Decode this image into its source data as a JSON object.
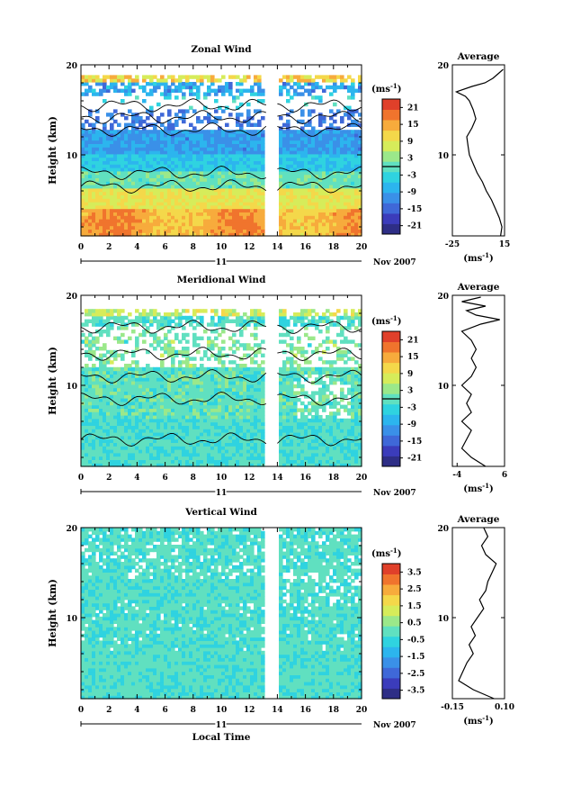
{
  "figure": {
    "date_label": "Nov 2007",
    "day_label": "11",
    "xlabel": "Local Time",
    "ylabel": "Height (km)"
  },
  "chart_data": [
    {
      "type": "heatmap",
      "title": "Zonal Wind",
      "xlabel": "Local Time",
      "ylabel": "Height (km)",
      "x_ticks": [
        "0",
        "2",
        "4",
        "6",
        "8",
        "10",
        "12",
        "14",
        "16",
        "18",
        "20"
      ],
      "y_ticks": [
        "10",
        "20"
      ],
      "xlim": [
        0,
        20
      ],
      "ylim": [
        1,
        20
      ],
      "data_gap_hours": [
        13.2,
        13.9
      ],
      "colorbar": {
        "unit_label": "(ms",
        "unit_exp": "-1",
        "unit_close": ")",
        "ticks": [
          "21",
          "15",
          "9",
          "3",
          "-3",
          "-9",
          "-15",
          "-21"
        ],
        "range": [
          -24,
          24
        ],
        "contour_level": 0
      },
      "profile": {
        "title": "Average",
        "unit_label": "(ms",
        "unit_exp": "-1",
        "unit_close": ")",
        "xlim": [
          -25,
          15
        ],
        "x_ticks": [
          "-25",
          "15"
        ],
        "y_ticks": [
          "10",
          "20"
        ],
        "points": [
          [
            12,
            1
          ],
          [
            13,
            2
          ],
          [
            11,
            3
          ],
          [
            8,
            4
          ],
          [
            5,
            5
          ],
          [
            1,
            6
          ],
          [
            -2,
            7
          ],
          [
            -6,
            8
          ],
          [
            -9,
            9
          ],
          [
            -12,
            10
          ],
          [
            -13,
            11
          ],
          [
            -14,
            12
          ],
          [
            -10,
            13
          ],
          [
            -7,
            14
          ],
          [
            -9,
            15
          ],
          [
            -12,
            16
          ],
          [
            -15,
            16.5
          ],
          [
            -22,
            17
          ],
          [
            -10,
            17.6
          ],
          [
            0,
            18
          ],
          [
            6,
            18.5
          ],
          [
            10,
            19
          ],
          [
            14,
            19.5
          ]
        ]
      }
    },
    {
      "type": "heatmap",
      "title": "Meridional Wind",
      "xlabel": "Local Time",
      "ylabel": "Height (km)",
      "x_ticks": [
        "0",
        "2",
        "4",
        "6",
        "8",
        "10",
        "12",
        "14",
        "16",
        "18",
        "20"
      ],
      "y_ticks": [
        "10",
        "20"
      ],
      "xlim": [
        0,
        20
      ],
      "ylim": [
        1,
        20
      ],
      "data_gap_hours": [
        13.2,
        13.9
      ],
      "colorbar": {
        "unit_label": "(ms",
        "unit_exp": "-1",
        "unit_close": ")",
        "ticks": [
          "21",
          "15",
          "9",
          "3",
          "-3",
          "-9",
          "-15",
          "-21"
        ],
        "range": [
          -24,
          24
        ],
        "contour_level": 0
      },
      "profile": {
        "title": "Average",
        "unit_label": "(ms",
        "unit_exp": "-1",
        "unit_close": ")",
        "xlim": [
          -5,
          6
        ],
        "x_ticks": [
          "-4",
          "6"
        ],
        "y_ticks": [
          "10",
          "20"
        ],
        "points": [
          [
            2,
            1
          ],
          [
            -1,
            2
          ],
          [
            -3,
            3
          ],
          [
            -2,
            4
          ],
          [
            -1,
            5
          ],
          [
            -3,
            6
          ],
          [
            -1,
            7
          ],
          [
            -2,
            8
          ],
          [
            -1,
            9
          ],
          [
            -3,
            10
          ],
          [
            -1,
            11
          ],
          [
            0,
            12
          ],
          [
            -1,
            13
          ],
          [
            0,
            14
          ],
          [
            -1,
            15
          ],
          [
            -3,
            16
          ],
          [
            1,
            16.8
          ],
          [
            5,
            17.3
          ],
          [
            0,
            17.8
          ],
          [
            -2,
            18.3
          ],
          [
            2,
            18.8
          ],
          [
            -3,
            19.3
          ],
          [
            1,
            19.8
          ]
        ]
      }
    },
    {
      "type": "heatmap",
      "title": "Vertical Wind",
      "xlabel": "Local Time",
      "ylabel": "Height (km)",
      "x_ticks": [
        "0",
        "2",
        "4",
        "6",
        "8",
        "10",
        "12",
        "14",
        "16",
        "18",
        "20"
      ],
      "y_ticks": [
        "10",
        "20"
      ],
      "xlim": [
        0,
        20
      ],
      "ylim": [
        1,
        20
      ],
      "data_gap_hours": [
        13.2,
        13.9
      ],
      "colorbar": {
        "unit_label": "(ms",
        "unit_exp": "-1",
        "unit_close": ")",
        "ticks": [
          "3.5",
          "2.5",
          "1.5",
          "0.5",
          "-0.5",
          "-1.5",
          "-2.5",
          "-3.5"
        ],
        "range": [
          -4,
          4
        ]
      },
      "profile": {
        "title": "Average",
        "unit_label": "(ms",
        "unit_exp": "-1",
        "unit_close": ")",
        "xlim": [
          -0.15,
          0.1
        ],
        "x_ticks": [
          "-0.15",
          "0.10"
        ],
        "y_ticks": [
          "10",
          "20"
        ],
        "points": [
          [
            0.05,
            1
          ],
          [
            -0.05,
            2
          ],
          [
            -0.12,
            3
          ],
          [
            -0.1,
            4
          ],
          [
            -0.08,
            5
          ],
          [
            -0.05,
            6
          ],
          [
            -0.07,
            7
          ],
          [
            -0.04,
            8
          ],
          [
            -0.06,
            9
          ],
          [
            -0.03,
            10
          ],
          [
            0.0,
            11
          ],
          [
            -0.02,
            12
          ],
          [
            0.01,
            13
          ],
          [
            0.02,
            14
          ],
          [
            0.04,
            15
          ],
          [
            0.06,
            16
          ],
          [
            0.01,
            17
          ],
          [
            -0.01,
            18
          ],
          [
            0.02,
            19
          ],
          [
            0.0,
            20
          ]
        ]
      }
    }
  ],
  "styles": {
    "colormap": [
      "#2e2e86",
      "#3b3cbb",
      "#3f68d8",
      "#3a90e8",
      "#2cb5ee",
      "#2fd3e0",
      "#60e0c0",
      "#9be88a",
      "#d6ec5a",
      "#f4d84a",
      "#f7ab3c",
      "#f0742d",
      "#e0402a"
    ],
    "contour_color": "#000000",
    "grid": false
  }
}
